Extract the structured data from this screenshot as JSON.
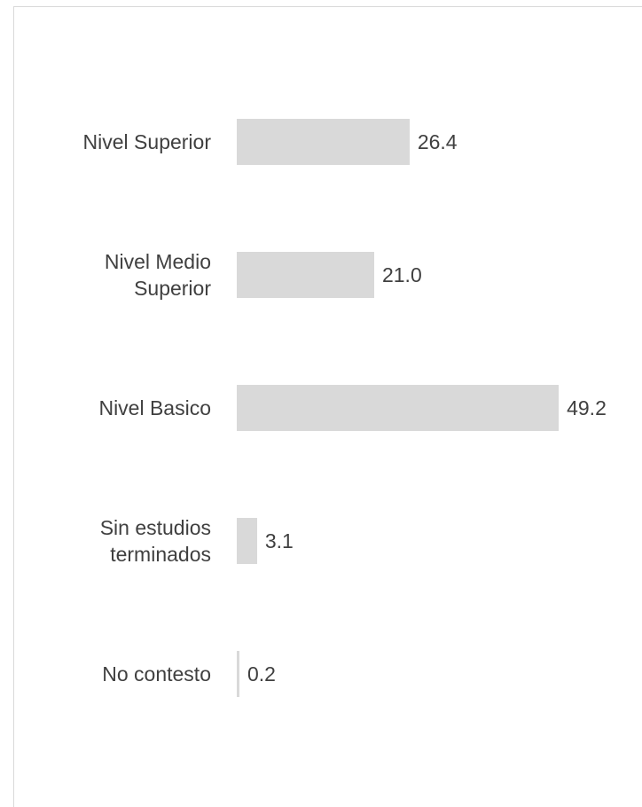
{
  "chart_data": {
    "type": "bar",
    "orientation": "horizontal",
    "categories": [
      "Nivel Superior",
      "Nivel Medio Superior",
      "Nivel Basico",
      "Sin estudios terminados",
      "No contesto"
    ],
    "values": [
      26.4,
      21.0,
      49.2,
      3.1,
      0.2
    ],
    "value_labels": [
      "26.4",
      "21.0",
      "49.2",
      "3.1",
      "0.2"
    ],
    "color": "#d9d9d9"
  }
}
